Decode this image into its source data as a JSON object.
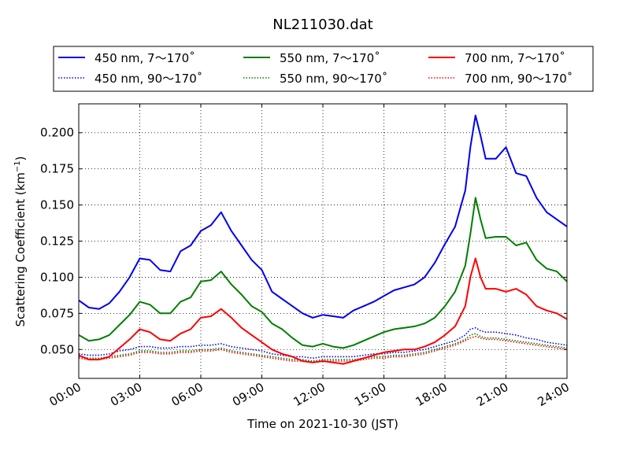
{
  "chart_data": {
    "type": "line",
    "title": "NL211030.dat",
    "xlabel": "Time on 2021-10-30 (JST)",
    "ylabel_main": "Scattering Coefficient (km",
    "ylabel_sup": "−1",
    "ylabel_close": ")",
    "xlim": [
      0,
      24
    ],
    "ylim": [
      0.03,
      0.22
    ],
    "x_ticks": [
      0,
      3,
      6,
      9,
      12,
      15,
      18,
      21,
      24
    ],
    "x_tick_labels": [
      "00:00",
      "03:00",
      "06:00",
      "09:00",
      "12:00",
      "15:00",
      "18:00",
      "21:00",
      "24:00"
    ],
    "y_ticks": [
      0.05,
      0.075,
      0.1,
      0.125,
      0.15,
      0.175,
      0.2
    ],
    "y_tick_labels": [
      "0.050",
      "0.075",
      "0.100",
      "0.125",
      "0.150",
      "0.175",
      "0.200"
    ],
    "grid": true,
    "legend_placement": "top, above plot",
    "colors": {
      "blue": "#0000ee",
      "green": "#007f00",
      "red": "#ff0000"
    },
    "series": [
      {
        "name": "450 nm, 7～170˚",
        "color": "#0000ee",
        "style": "solid",
        "x": [
          0,
          0.5,
          1,
          1.5,
          2,
          2.5,
          3,
          3.5,
          4,
          4.5,
          5,
          5.5,
          6,
          6.5,
          7,
          7.5,
          8,
          8.5,
          9,
          9.5,
          10,
          10.5,
          11,
          11.5,
          12,
          12.5,
          13,
          13.5,
          14,
          14.5,
          15,
          15.5,
          16,
          16.5,
          17,
          17.5,
          18,
          18.5,
          19,
          19.25,
          19.5,
          19.75,
          20,
          20.5,
          21,
          21.5,
          22,
          22.5,
          23,
          23.5,
          24
        ],
        "y": [
          0.084,
          0.079,
          0.078,
          0.082,
          0.09,
          0.1,
          0.113,
          0.112,
          0.105,
          0.104,
          0.118,
          0.122,
          0.132,
          0.136,
          0.145,
          0.132,
          0.122,
          0.112,
          0.105,
          0.09,
          0.085,
          0.08,
          0.075,
          0.072,
          0.074,
          0.073,
          0.072,
          0.077,
          0.08,
          0.083,
          0.087,
          0.091,
          0.093,
          0.095,
          0.1,
          0.11,
          0.123,
          0.135,
          0.16,
          0.19,
          0.212,
          0.198,
          0.182,
          0.182,
          0.19,
          0.172,
          0.17,
          0.155,
          0.145,
          0.14,
          0.135
        ]
      },
      {
        "name": "550 nm, 7～170˚",
        "color": "#007f00",
        "style": "solid",
        "x": [
          0,
          0.5,
          1,
          1.5,
          2,
          2.5,
          3,
          3.5,
          4,
          4.5,
          5,
          5.5,
          6,
          6.5,
          7,
          7.5,
          8,
          8.5,
          9,
          9.5,
          10,
          10.5,
          11,
          11.5,
          12,
          12.5,
          13,
          13.5,
          14,
          14.5,
          15,
          15.5,
          16,
          16.5,
          17,
          17.5,
          18,
          18.5,
          19,
          19.25,
          19.5,
          19.75,
          20,
          20.5,
          21,
          21.5,
          22,
          22.5,
          23,
          23.5,
          24
        ],
        "y": [
          0.06,
          0.056,
          0.057,
          0.06,
          0.067,
          0.074,
          0.083,
          0.081,
          0.075,
          0.075,
          0.083,
          0.086,
          0.097,
          0.098,
          0.104,
          0.095,
          0.088,
          0.08,
          0.076,
          0.068,
          0.064,
          0.058,
          0.053,
          0.052,
          0.054,
          0.052,
          0.051,
          0.053,
          0.056,
          0.059,
          0.062,
          0.064,
          0.065,
          0.066,
          0.068,
          0.072,
          0.08,
          0.09,
          0.108,
          0.13,
          0.155,
          0.14,
          0.127,
          0.128,
          0.128,
          0.122,
          0.124,
          0.112,
          0.106,
          0.104,
          0.097
        ]
      },
      {
        "name": "700 nm, 7～170˚",
        "color": "#ff0000",
        "style": "solid",
        "x": [
          0,
          0.5,
          1,
          1.5,
          2,
          2.5,
          3,
          3.5,
          4,
          4.5,
          5,
          5.5,
          6,
          6.5,
          7,
          7.5,
          8,
          8.5,
          9,
          9.5,
          10,
          10.5,
          11,
          11.5,
          12,
          12.5,
          13,
          13.5,
          14,
          14.5,
          15,
          15.5,
          16,
          16.5,
          17,
          17.5,
          18,
          18.5,
          19,
          19.25,
          19.5,
          19.75,
          20,
          20.5,
          21,
          21.5,
          22,
          22.5,
          23,
          23.5,
          24
        ],
        "y": [
          0.046,
          0.043,
          0.043,
          0.045,
          0.051,
          0.057,
          0.064,
          0.062,
          0.057,
          0.056,
          0.061,
          0.064,
          0.072,
          0.073,
          0.078,
          0.072,
          0.065,
          0.06,
          0.055,
          0.05,
          0.047,
          0.045,
          0.042,
          0.041,
          0.042,
          0.041,
          0.04,
          0.042,
          0.044,
          0.046,
          0.048,
          0.049,
          0.05,
          0.05,
          0.052,
          0.055,
          0.06,
          0.066,
          0.08,
          0.1,
          0.113,
          0.1,
          0.092,
          0.092,
          0.09,
          0.092,
          0.088,
          0.08,
          0.077,
          0.075,
          0.071
        ]
      },
      {
        "name": "450 nm, 90～170˚",
        "color": "#0000ee",
        "style": "dotted",
        "x": [
          0,
          0.5,
          1,
          1.5,
          2,
          2.5,
          3,
          3.5,
          4,
          4.5,
          5,
          5.5,
          6,
          6.5,
          7,
          7.5,
          8,
          8.5,
          9,
          9.5,
          10,
          10.5,
          11,
          11.5,
          12,
          12.5,
          13,
          13.5,
          14,
          14.5,
          15,
          15.5,
          16,
          16.5,
          17,
          17.5,
          18,
          18.5,
          19,
          19.25,
          19.5,
          19.75,
          20,
          20.5,
          21,
          21.5,
          22,
          22.5,
          23,
          23.5,
          24
        ],
        "y": [
          0.047,
          0.046,
          0.046,
          0.047,
          0.049,
          0.05,
          0.052,
          0.052,
          0.051,
          0.051,
          0.052,
          0.052,
          0.053,
          0.053,
          0.054,
          0.052,
          0.051,
          0.05,
          0.049,
          0.047,
          0.046,
          0.045,
          0.045,
          0.044,
          0.045,
          0.045,
          0.045,
          0.045,
          0.046,
          0.047,
          0.047,
          0.048,
          0.048,
          0.049,
          0.05,
          0.052,
          0.054,
          0.056,
          0.06,
          0.064,
          0.065,
          0.063,
          0.062,
          0.062,
          0.061,
          0.06,
          0.058,
          0.057,
          0.055,
          0.054,
          0.053
        ]
      },
      {
        "name": "550 nm, 90～170˚",
        "color": "#007f00",
        "style": "dotted",
        "x": [
          0,
          0.5,
          1,
          1.5,
          2,
          2.5,
          3,
          3.5,
          4,
          4.5,
          5,
          5.5,
          6,
          6.5,
          7,
          7.5,
          8,
          8.5,
          9,
          9.5,
          10,
          10.5,
          11,
          11.5,
          12,
          12.5,
          13,
          13.5,
          14,
          14.5,
          15,
          15.5,
          16,
          16.5,
          17,
          17.5,
          18,
          18.5,
          19,
          19.25,
          19.5,
          19.75,
          20,
          20.5,
          21,
          21.5,
          22,
          22.5,
          23,
          23.5,
          24
        ],
        "y": [
          0.045,
          0.044,
          0.044,
          0.045,
          0.046,
          0.047,
          0.049,
          0.049,
          0.048,
          0.048,
          0.049,
          0.049,
          0.05,
          0.05,
          0.051,
          0.049,
          0.048,
          0.047,
          0.046,
          0.045,
          0.044,
          0.043,
          0.043,
          0.042,
          0.043,
          0.043,
          0.043,
          0.043,
          0.044,
          0.045,
          0.045,
          0.046,
          0.046,
          0.047,
          0.048,
          0.05,
          0.052,
          0.054,
          0.057,
          0.06,
          0.061,
          0.059,
          0.058,
          0.058,
          0.057,
          0.056,
          0.055,
          0.054,
          0.053,
          0.052,
          0.051
        ]
      },
      {
        "name": "700 nm, 90～170˚",
        "color": "#ff0000",
        "style": "dotted",
        "x": [
          0,
          0.5,
          1,
          1.5,
          2,
          2.5,
          3,
          3.5,
          4,
          4.5,
          5,
          5.5,
          6,
          6.5,
          7,
          7.5,
          8,
          8.5,
          9,
          9.5,
          10,
          10.5,
          11,
          11.5,
          12,
          12.5,
          13,
          13.5,
          14,
          14.5,
          15,
          15.5,
          16,
          16.5,
          17,
          17.5,
          18,
          18.5,
          19,
          19.25,
          19.5,
          19.75,
          20,
          20.5,
          21,
          21.5,
          22,
          22.5,
          23,
          23.5,
          24
        ],
        "y": [
          0.044,
          0.043,
          0.043,
          0.044,
          0.045,
          0.046,
          0.048,
          0.048,
          0.047,
          0.047,
          0.048,
          0.048,
          0.049,
          0.049,
          0.05,
          0.048,
          0.047,
          0.046,
          0.045,
          0.044,
          0.043,
          0.042,
          0.042,
          0.041,
          0.042,
          0.042,
          0.042,
          0.042,
          0.043,
          0.044,
          0.044,
          0.045,
          0.045,
          0.046,
          0.047,
          0.049,
          0.051,
          0.053,
          0.056,
          0.058,
          0.059,
          0.058,
          0.057,
          0.057,
          0.056,
          0.055,
          0.054,
          0.053,
          0.052,
          0.051,
          0.05
        ]
      }
    ]
  }
}
